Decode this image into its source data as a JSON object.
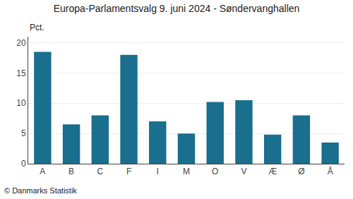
{
  "chart_data": {
    "type": "bar",
    "title": "Europa-Parlamentsvalg 9. juni 2024 - Søndervanghallen",
    "ylabel": "Pct.",
    "footer": "© Danmarks Statistik",
    "categories": [
      "A",
      "B",
      "C",
      "F",
      "I",
      "M",
      "O",
      "V",
      "Æ",
      "Ø",
      "Å"
    ],
    "values": [
      18.5,
      6.5,
      8.0,
      18.0,
      7.0,
      5.0,
      10.2,
      10.5,
      4.8,
      8.0,
      3.5
    ],
    "color": "#1a6e8e",
    "ylim": [
      0,
      21
    ],
    "yticks": [
      0,
      5,
      10,
      15,
      20
    ],
    "grid": true
  }
}
